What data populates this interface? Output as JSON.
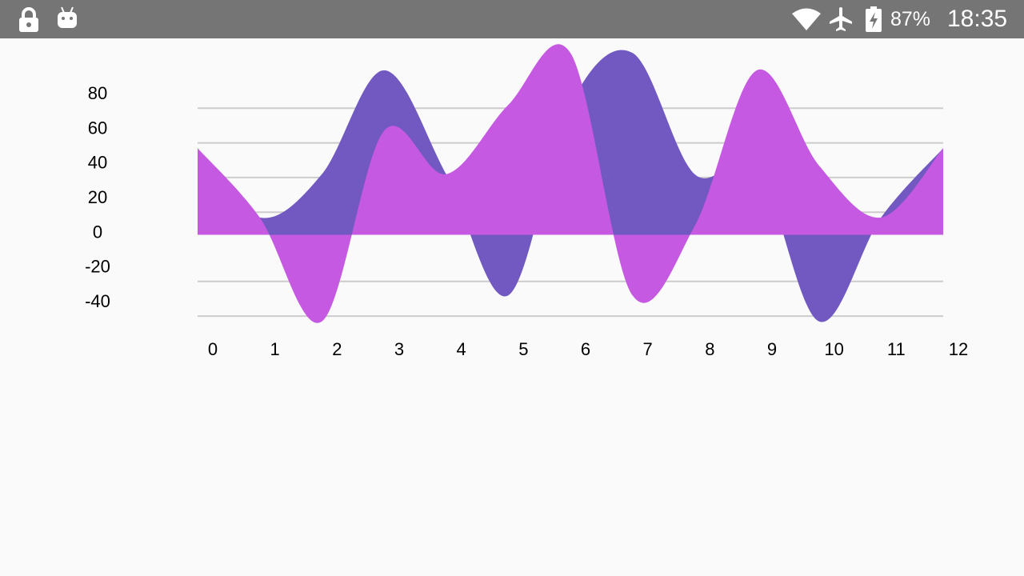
{
  "status_bar": {
    "battery_percent": "87%",
    "time": "18:35",
    "icons": [
      "lock-icon",
      "android-debug-icon",
      "wifi-icon",
      "airplane-mode-icon",
      "battery-charging-icon"
    ]
  },
  "colors": {
    "status_bar_bg": "#757575",
    "background": "#fafafa",
    "series_1": "#7159c1",
    "series_2": "#c659e1",
    "gridline": "#cccccc"
  },
  "chart_data": {
    "type": "area",
    "x": [
      0,
      1,
      2,
      3,
      4,
      5,
      6,
      7,
      8,
      9,
      10,
      11,
      12
    ],
    "series": [
      {
        "values": [
          50,
          10,
          35,
          95,
          35,
          -35,
          75,
          105,
          35,
          40,
          -50,
          10,
          50
        ]
      },
      {
        "values": [
          50,
          10,
          -50,
          60,
          35,
          75,
          105,
          -35,
          5,
          95,
          40,
          10,
          50
        ]
      }
    ],
    "y_ticks": [
      80,
      60,
      40,
      20,
      0,
      -20,
      -40
    ],
    "x_ticks": [
      "0",
      "1",
      "2",
      "3",
      "4",
      "5",
      "6",
      "7",
      "8",
      "9",
      "10",
      "11",
      "12"
    ],
    "grid": true,
    "legend": "none"
  }
}
